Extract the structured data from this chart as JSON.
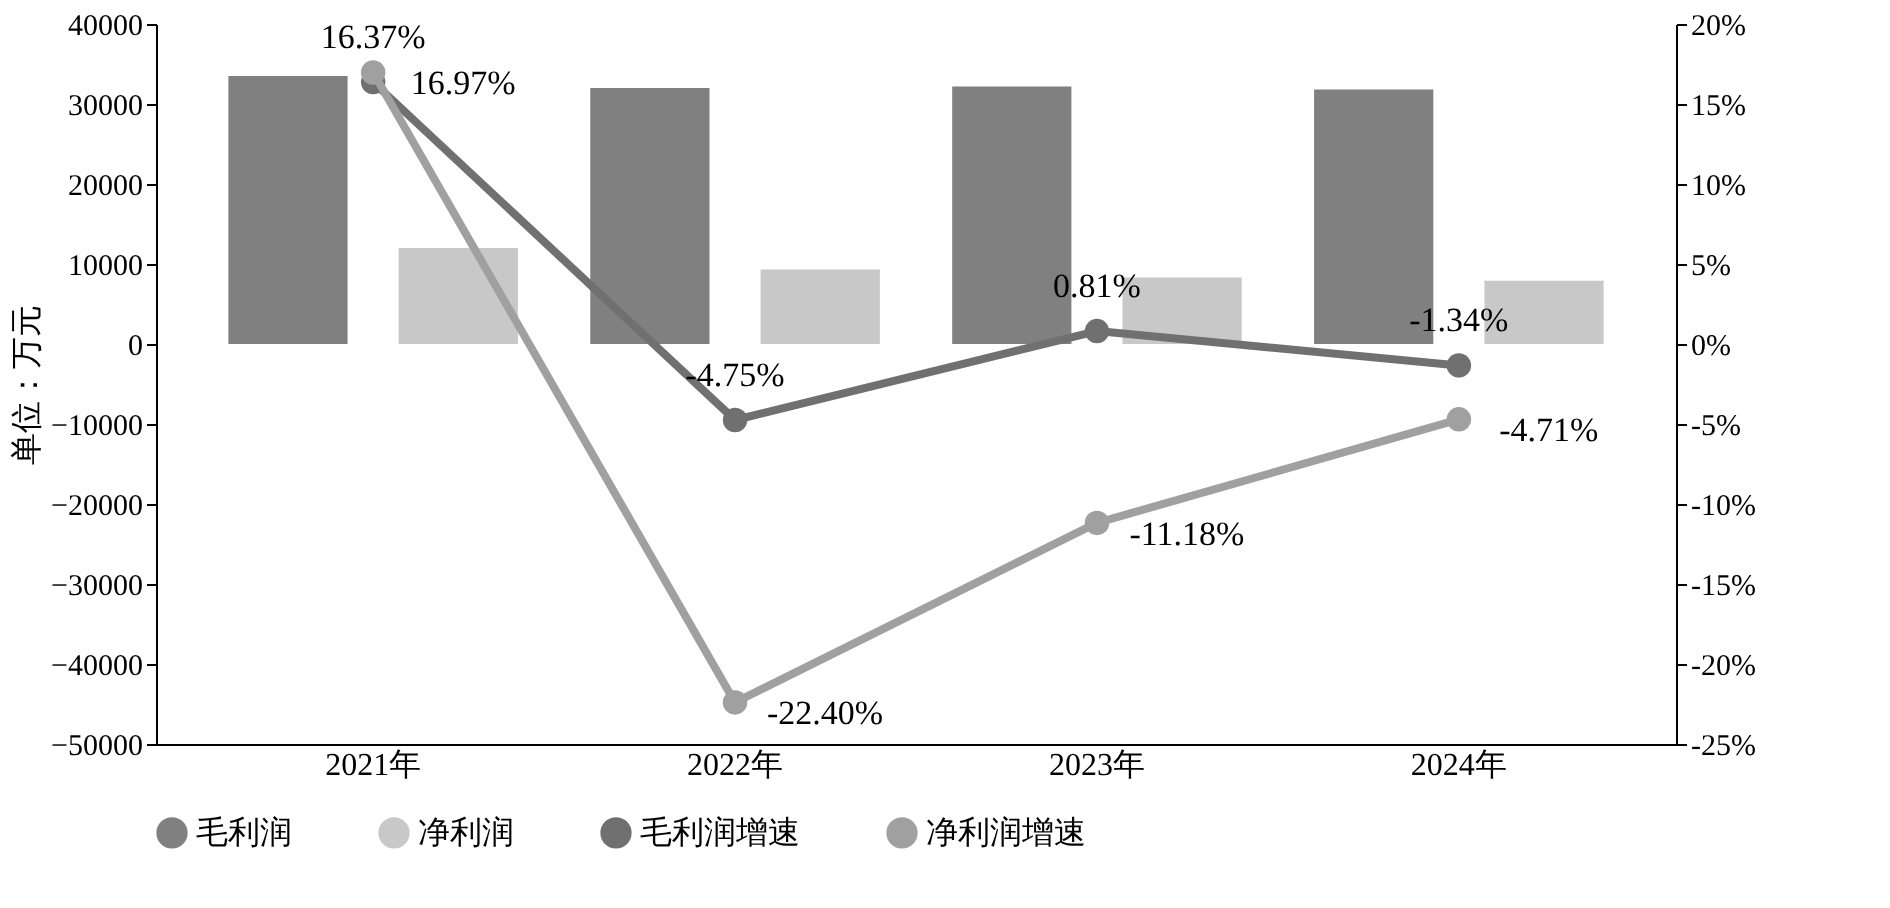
{
  "chart_data": {
    "type": "bar",
    "ylabel": "单位：万元",
    "categories": [
      "2021年",
      "2022年",
      "2023年",
      "2024年"
    ],
    "ylim": [
      -50000,
      40000
    ],
    "yticks": [
      -50000,
      -40000,
      -30000,
      -20000,
      -10000,
      0,
      10000,
      20000,
      30000,
      40000
    ],
    "y2lim": [
      -25,
      20
    ],
    "y2ticks": [
      {
        "value": -25,
        "label": "-25%"
      },
      {
        "value": -20,
        "label": "-20%"
      },
      {
        "value": -15,
        "label": "-15%"
      },
      {
        "value": -10,
        "label": "-10%"
      },
      {
        "value": -5,
        "label": "-5%"
      },
      {
        "value": 0,
        "label": "0%"
      },
      {
        "value": 5,
        "label": "5%"
      },
      {
        "value": 10,
        "label": "10%"
      },
      {
        "value": 15,
        "label": "15%"
      },
      {
        "value": 20,
        "label": "20%"
      }
    ],
    "legend": "bottom",
    "grid": false,
    "marker": "circle",
    "series": [
      {
        "name": "毛利润",
        "type": "bar",
        "color": "#808080",
        "values": [
          33500,
          32000,
          32200,
          31800
        ]
      },
      {
        "name": "净利润",
        "type": "bar",
        "color": "#c8c8c8",
        "values": [
          12000,
          9300,
          8300,
          7900
        ]
      },
      {
        "name": "毛利润增速",
        "type": "line",
        "axis": "y2",
        "color": "#707070",
        "values": [
          16.37,
          -4.75,
          0.81,
          -1.34
        ],
        "value_labels": [
          "16.37%",
          "-4.75%",
          "0.81%",
          "-1.34%"
        ]
      },
      {
        "name": "净利润增速",
        "type": "line",
        "axis": "y2",
        "color": "#a0a0a0",
        "values": [
          16.97,
          -22.4,
          -11.18,
          -4.71
        ],
        "value_labels": [
          "16.97%",
          "-22.40%",
          "-11.18%",
          "-4.71%"
        ]
      }
    ]
  }
}
